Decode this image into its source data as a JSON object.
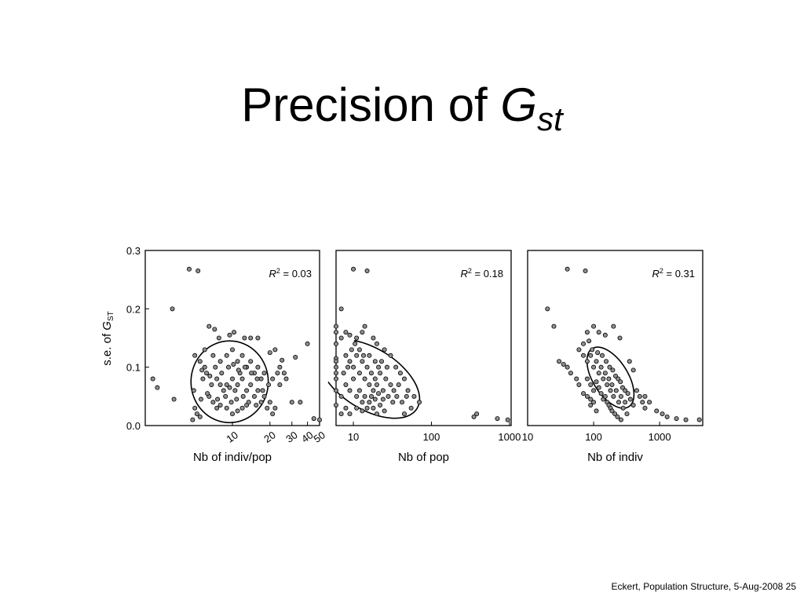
{
  "slide": {
    "title_text": "Precision of ",
    "title_symbol": "G",
    "title_subscript": "st",
    "footer": "Eckert, Population Structure, 5-Aug-2008 25"
  },
  "chart_data": [
    {
      "type": "scatter",
      "title": "",
      "xlabel": "Nb of indiv/pop",
      "ylabel_prefix": "s.e. of ",
      "ylabel_symbol": "G",
      "ylabel_sub": "ST",
      "xscale": "log",
      "xlim": [
        2,
        50
      ],
      "ylim": [
        0,
        0.3
      ],
      "xticks": [
        10,
        20,
        30,
        40,
        50
      ],
      "xticklabels": [
        "10",
        "20",
        "30",
        "40",
        "50"
      ],
      "yticks": [
        0.0,
        0.1,
        0.2,
        0.3
      ],
      "yticklabels": [
        "0.0",
        "0.1",
        "0.2",
        "0.3"
      ],
      "annotation": {
        "symbol": "R",
        "sup": "2",
        "text": " = 0.03"
      },
      "ellipse": {
        "cx": 9.5,
        "cy": 0.075,
        "rx_dec": 0.31,
        "ry": 0.07,
        "angle": 0
      },
      "points": [
        [
          4.5,
          0.268
        ],
        [
          5.3,
          0.265
        ],
        [
          3.3,
          0.2
        ],
        [
          2.3,
          0.08
        ],
        [
          2.5,
          0.065
        ],
        [
          3.4,
          0.045
        ],
        [
          6.5,
          0.17
        ],
        [
          7.2,
          0.165
        ],
        [
          7.8,
          0.15
        ],
        [
          9.5,
          0.155
        ],
        [
          10.3,
          0.16
        ],
        [
          12.5,
          0.15
        ],
        [
          14,
          0.15
        ],
        [
          16,
          0.15
        ],
        [
          20,
          0.125
        ],
        [
          22,
          0.13
        ],
        [
          25,
          0.112
        ],
        [
          32,
          0.117
        ],
        [
          40,
          0.14
        ],
        [
          26,
          0.09
        ],
        [
          24,
          0.07
        ],
        [
          27,
          0.08
        ],
        [
          30,
          0.04
        ],
        [
          35,
          0.04
        ],
        [
          45,
          0.012
        ],
        [
          50,
          0.01
        ],
        [
          5,
          0.12
        ],
        [
          5.5,
          0.11
        ],
        [
          6,
          0.1
        ],
        [
          6.2,
          0.09
        ],
        [
          5.8,
          0.08
        ],
        [
          6.8,
          0.07
        ],
        [
          7.5,
          0.08
        ],
        [
          8,
          0.07
        ],
        [
          8.5,
          0.06
        ],
        [
          9,
          0.07
        ],
        [
          9.5,
          0.065
        ],
        [
          10,
          0.08
        ],
        [
          10.5,
          0.06
        ],
        [
          11,
          0.07
        ],
        [
          11.5,
          0.09
        ],
        [
          12,
          0.08
        ],
        [
          13,
          0.06
        ],
        [
          14,
          0.07
        ],
        [
          15,
          0.05
        ],
        [
          16,
          0.06
        ],
        [
          17,
          0.04
        ],
        [
          18,
          0.05
        ],
        [
          19,
          0.03
        ],
        [
          20,
          0.04
        ],
        [
          21,
          0.02
        ],
        [
          22,
          0.03
        ],
        [
          6,
          0.13
        ],
        [
          7,
          0.12
        ],
        [
          8,
          0.11
        ],
        [
          9,
          0.12
        ],
        [
          10,
          0.13
        ],
        [
          11,
          0.11
        ],
        [
          12,
          0.12
        ],
        [
          13,
          0.1
        ],
        [
          14,
          0.11
        ],
        [
          15,
          0.09
        ],
        [
          16,
          0.1
        ],
        [
          17,
          0.08
        ],
        [
          18,
          0.09
        ],
        [
          6.5,
          0.05
        ],
        [
          7,
          0.04
        ],
        [
          7.5,
          0.03
        ],
        [
          8,
          0.035
        ],
        [
          9,
          0.03
        ],
        [
          10,
          0.02
        ],
        [
          11,
          0.025
        ],
        [
          12,
          0.03
        ],
        [
          13,
          0.035
        ],
        [
          5,
          0.03
        ],
        [
          5.2,
          0.02
        ],
        [
          5.5,
          0.015
        ],
        [
          4.8,
          0.01
        ],
        [
          4.9,
          0.06
        ],
        [
          5.6,
          0.045
        ],
        [
          6.3,
          0.055
        ],
        [
          7.6,
          0.045
        ],
        [
          8.8,
          0.05
        ],
        [
          9.8,
          0.04
        ],
        [
          10.8,
          0.045
        ],
        [
          12.2,
          0.05
        ],
        [
          13.5,
          0.04
        ],
        [
          15.5,
          0.035
        ],
        [
          17.5,
          0.06
        ],
        [
          19.5,
          0.07
        ],
        [
          21,
          0.08
        ],
        [
          23,
          0.09
        ],
        [
          24,
          0.1
        ],
        [
          5.7,
          0.095
        ],
        [
          6.6,
          0.085
        ],
        [
          7.3,
          0.1
        ],
        [
          8.2,
          0.09
        ],
        [
          9.3,
          0.1
        ],
        [
          10.2,
          0.105
        ],
        [
          11.2,
          0.095
        ],
        [
          12.6,
          0.1
        ],
        [
          14.2,
          0.09
        ],
        [
          15.8,
          0.08
        ]
      ]
    },
    {
      "type": "scatter",
      "title": "",
      "xlabel": "Nb of pop",
      "xscale": "log",
      "xlim": [
        6,
        1050
      ],
      "ylim": [
        0,
        0.3
      ],
      "xticks": [
        10,
        100,
        1000
      ],
      "xticklabels": [
        "10",
        "100",
        "1000"
      ],
      "annotation": {
        "symbol": "R",
        "sup": "2",
        "text": " = 0.18"
      },
      "ellipse": {
        "cx": 16,
        "cy": 0.08,
        "rx_dec": 0.72,
        "ry": 0.052,
        "angle": 32
      },
      "points": [
        [
          10,
          0.268
        ],
        [
          15,
          0.265
        ],
        [
          7,
          0.2
        ],
        [
          6,
          0.17
        ],
        [
          6,
          0.16
        ],
        [
          6,
          0.14
        ],
        [
          6,
          0.115
        ],
        [
          6,
          0.11
        ],
        [
          6,
          0.1
        ],
        [
          6,
          0.09
        ],
        [
          6,
          0.08
        ],
        [
          6,
          0.06
        ],
        [
          6,
          0.035
        ],
        [
          7,
          0.15
        ],
        [
          8,
          0.16
        ],
        [
          9,
          0.155
        ],
        [
          11,
          0.15
        ],
        [
          13,
          0.16
        ],
        [
          14,
          0.17
        ],
        [
          18,
          0.15
        ],
        [
          20,
          0.14
        ],
        [
          25,
          0.13
        ],
        [
          30,
          0.12
        ],
        [
          35,
          0.1
        ],
        [
          40,
          0.09
        ],
        [
          45,
          0.08
        ],
        [
          50,
          0.06
        ],
        [
          60,
          0.05
        ],
        [
          70,
          0.04
        ],
        [
          55,
          0.03
        ],
        [
          45,
          0.02
        ],
        [
          350,
          0.015
        ],
        [
          380,
          0.02
        ],
        [
          700,
          0.012
        ],
        [
          950,
          0.01
        ],
        [
          8,
          0.12
        ],
        [
          9,
          0.11
        ],
        [
          10,
          0.1
        ],
        [
          11,
          0.12
        ],
        [
          12,
          0.09
        ],
        [
          13,
          0.11
        ],
        [
          14,
          0.08
        ],
        [
          15,
          0.1
        ],
        [
          16,
          0.07
        ],
        [
          17,
          0.09
        ],
        [
          18,
          0.06
        ],
        [
          19,
          0.08
        ],
        [
          20,
          0.07
        ],
        [
          22,
          0.09
        ],
        [
          24,
          0.06
        ],
        [
          26,
          0.08
        ],
        [
          28,
          0.05
        ],
        [
          30,
          0.07
        ],
        [
          32,
          0.04
        ],
        [
          8,
          0.07
        ],
        [
          9,
          0.06
        ],
        [
          10,
          0.08
        ],
        [
          11,
          0.05
        ],
        [
          12,
          0.06
        ],
        [
          13,
          0.04
        ],
        [
          14,
          0.05
        ],
        [
          15,
          0.03
        ],
        [
          16,
          0.04
        ],
        [
          18,
          0.03
        ],
        [
          20,
          0.02
        ],
        [
          22,
          0.035
        ],
        [
          25,
          0.025
        ],
        [
          8,
          0.03
        ],
        [
          7,
          0.05
        ],
        [
          7.5,
          0.09
        ],
        [
          8.5,
          0.1
        ],
        [
          9.5,
          0.13
        ],
        [
          10.5,
          0.14
        ],
        [
          12,
          0.13
        ],
        [
          13.5,
          0.12
        ],
        [
          16,
          0.12
        ],
        [
          19,
          0.11
        ],
        [
          21,
          0.1
        ],
        [
          23,
          0.11
        ],
        [
          27,
          0.1
        ],
        [
          7,
          0.02
        ],
        [
          9,
          0.02
        ],
        [
          11,
          0.03
        ],
        [
          13,
          0.025
        ],
        [
          17,
          0.05
        ],
        [
          19,
          0.045
        ],
        [
          21,
          0.055
        ],
        [
          24,
          0.045
        ],
        [
          33,
          0.06
        ],
        [
          36,
          0.05
        ],
        [
          38,
          0.07
        ],
        [
          42,
          0.04
        ],
        [
          48,
          0.05
        ]
      ]
    },
    {
      "type": "scatter",
      "title": "",
      "xlabel": "Nb of indiv",
      "xscale": "log",
      "xlim": [
        10,
        4500
      ],
      "ylim": [
        0,
        0.3
      ],
      "xticks": [
        10,
        100,
        1000
      ],
      "xticklabels": [
        "10",
        "100",
        "1000"
      ],
      "annotation": {
        "symbol": "R",
        "sup": "2",
        "text": " = 0.31"
      },
      "ellipse": {
        "cx": 180,
        "cy": 0.082,
        "rx_dec": 0.52,
        "ry": 0.03,
        "angle": 58
      },
      "points": [
        [
          40,
          0.268
        ],
        [
          75,
          0.265
        ],
        [
          20,
          0.2
        ],
        [
          25,
          0.17
        ],
        [
          30,
          0.11
        ],
        [
          35,
          0.105
        ],
        [
          40,
          0.1
        ],
        [
          45,
          0.09
        ],
        [
          55,
          0.08
        ],
        [
          60,
          0.07
        ],
        [
          70,
          0.055
        ],
        [
          80,
          0.05
        ],
        [
          90,
          0.045
        ],
        [
          100,
          0.04
        ],
        [
          80,
          0.16
        ],
        [
          100,
          0.17
        ],
        [
          120,
          0.16
        ],
        [
          150,
          0.155
        ],
        [
          200,
          0.17
        ],
        [
          250,
          0.15
        ],
        [
          350,
          0.11
        ],
        [
          400,
          0.095
        ],
        [
          600,
          0.05
        ],
        [
          700,
          0.04
        ],
        [
          900,
          0.025
        ],
        [
          1100,
          0.02
        ],
        [
          1300,
          0.015
        ],
        [
          1800,
          0.012
        ],
        [
          2500,
          0.01
        ],
        [
          4000,
          0.01
        ],
        [
          60,
          0.13
        ],
        [
          70,
          0.12
        ],
        [
          80,
          0.11
        ],
        [
          90,
          0.12
        ],
        [
          100,
          0.1
        ],
        [
          110,
          0.11
        ],
        [
          120,
          0.09
        ],
        [
          130,
          0.1
        ],
        [
          140,
          0.08
        ],
        [
          150,
          0.09
        ],
        [
          160,
          0.07
        ],
        [
          170,
          0.08
        ],
        [
          180,
          0.06
        ],
        [
          190,
          0.07
        ],
        [
          200,
          0.05
        ],
        [
          220,
          0.06
        ],
        [
          240,
          0.04
        ],
        [
          260,
          0.05
        ],
        [
          280,
          0.03
        ],
        [
          300,
          0.04
        ],
        [
          320,
          0.02
        ],
        [
          80,
          0.08
        ],
        [
          90,
          0.07
        ],
        [
          100,
          0.06
        ],
        [
          110,
          0.075
        ],
        [
          120,
          0.065
        ],
        [
          130,
          0.055
        ],
        [
          140,
          0.045
        ],
        [
          150,
          0.05
        ],
        [
          160,
          0.04
        ],
        [
          170,
          0.035
        ],
        [
          180,
          0.03
        ],
        [
          190,
          0.025
        ],
        [
          210,
          0.02
        ],
        [
          230,
          0.015
        ],
        [
          260,
          0.01
        ],
        [
          70,
          0.14
        ],
        [
          85,
          0.145
        ],
        [
          95,
          0.13
        ],
        [
          115,
          0.125
        ],
        [
          135,
          0.12
        ],
        [
          155,
          0.11
        ],
        [
          175,
          0.1
        ],
        [
          195,
          0.095
        ],
        [
          215,
          0.085
        ],
        [
          235,
          0.08
        ],
        [
          255,
          0.075
        ],
        [
          275,
          0.065
        ],
        [
          300,
          0.06
        ],
        [
          330,
          0.055
        ],
        [
          360,
          0.045
        ],
        [
          400,
          0.035
        ],
        [
          450,
          0.06
        ],
        [
          500,
          0.05
        ],
        [
          550,
          0.04
        ],
        [
          600,
          0.03
        ],
        [
          110,
          0.025
        ],
        [
          90,
          0.035
        ]
      ]
    }
  ]
}
